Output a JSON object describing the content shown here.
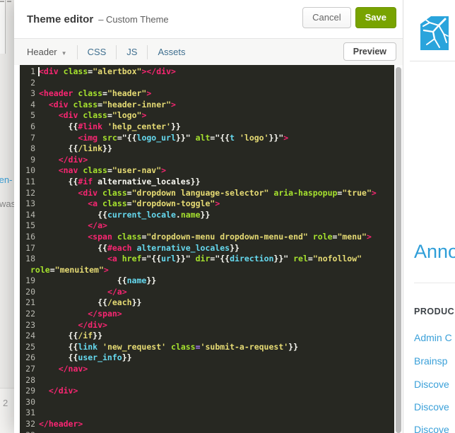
{
  "left_strip": {
    "link_fragment": "/en-",
    "text_fragment": "was",
    "page_number": "2"
  },
  "modal": {
    "title": "Theme editor",
    "subtitle": "– Custom Theme",
    "cancel_label": "Cancel",
    "save_label": "Save",
    "save_color": "#78a300",
    "tabs": [
      {
        "label": "Header"
      },
      {
        "label": "CSS"
      },
      {
        "label": "JS"
      },
      {
        "label": "Assets"
      }
    ],
    "preview_label": "Preview"
  },
  "editor": {
    "colors": {
      "bg": "#272822",
      "gutter": "#b9b9b1",
      "p": "#f92672",
      "g": "#a6e22e",
      "y": "#e6db74",
      "c": "#66d9ef",
      "w": "#f8f8f2",
      "v": "#ae81ff"
    },
    "rows": [
      {
        "n": "1",
        "t": [
          [
            "p",
            "<div"
          ],
          [
            "w",
            " "
          ],
          [
            "g",
            "class"
          ],
          [
            "w",
            "="
          ],
          [
            "y",
            "\"alertbox\""
          ],
          [
            "p",
            "></div>"
          ]
        ]
      },
      {
        "n": "2",
        "t": []
      },
      {
        "n": "3",
        "t": [
          [
            "p",
            "<header"
          ],
          [
            "w",
            " "
          ],
          [
            "g",
            "class"
          ],
          [
            "w",
            "="
          ],
          [
            "y",
            "\"header\""
          ],
          [
            "p",
            ">"
          ]
        ]
      },
      {
        "n": "4",
        "t": [
          [
            "w",
            "  "
          ],
          [
            "p",
            "<div"
          ],
          [
            "w",
            " "
          ],
          [
            "g",
            "class"
          ],
          [
            "w",
            "="
          ],
          [
            "y",
            "\"header-inner\""
          ],
          [
            "p",
            ">"
          ]
        ]
      },
      {
        "n": "5",
        "t": [
          [
            "w",
            "    "
          ],
          [
            "p",
            "<div"
          ],
          [
            "w",
            " "
          ],
          [
            "g",
            "class"
          ],
          [
            "w",
            "="
          ],
          [
            "y",
            "\"logo\""
          ],
          [
            "p",
            ">"
          ]
        ]
      },
      {
        "n": "6",
        "t": [
          [
            "w",
            "      {{"
          ],
          [
            "p",
            "#link"
          ],
          [
            "w",
            " "
          ],
          [
            "y",
            "'help_center'"
          ],
          [
            "w",
            "}}"
          ]
        ]
      },
      {
        "n": "7",
        "t": [
          [
            "w",
            "        "
          ],
          [
            "p",
            "<img"
          ],
          [
            "w",
            " "
          ],
          [
            "g",
            "src"
          ],
          [
            "w",
            "=\"{{"
          ],
          [
            "c",
            "logo_url"
          ],
          [
            "w",
            "}}\" "
          ],
          [
            "g",
            "alt"
          ],
          [
            "w",
            "=\"{{"
          ],
          [
            "c",
            "t"
          ],
          [
            "w",
            " "
          ],
          [
            "y",
            "'logo'"
          ],
          [
            "w",
            "}}\""
          ],
          [
            "p",
            ">"
          ]
        ]
      },
      {
        "n": "8",
        "t": [
          [
            "w",
            "      {{"
          ],
          [
            "y",
            "/link"
          ],
          [
            "w",
            "}}"
          ]
        ]
      },
      {
        "n": "9",
        "t": [
          [
            "w",
            "    "
          ],
          [
            "p",
            "</div>"
          ]
        ]
      },
      {
        "n": "10",
        "t": [
          [
            "w",
            "    "
          ],
          [
            "p",
            "<nav"
          ],
          [
            "w",
            " "
          ],
          [
            "g",
            "class"
          ],
          [
            "w",
            "="
          ],
          [
            "y",
            "\"user-nav\""
          ],
          [
            "p",
            ">"
          ]
        ]
      },
      {
        "n": "11",
        "t": [
          [
            "w",
            "      {{"
          ],
          [
            "p",
            "#if"
          ],
          [
            "w",
            " alternative_locales}}"
          ]
        ]
      },
      {
        "n": "12",
        "t": [
          [
            "w",
            "        "
          ],
          [
            "p",
            "<div"
          ],
          [
            "w",
            " "
          ],
          [
            "g",
            "class"
          ],
          [
            "w",
            "="
          ],
          [
            "y",
            "\"dropdown language-selector\""
          ],
          [
            "w",
            " "
          ],
          [
            "g",
            "aria-haspopup"
          ],
          [
            "w",
            "="
          ],
          [
            "y",
            "\"true\""
          ],
          [
            "p",
            ">"
          ]
        ]
      },
      {
        "n": "13",
        "t": [
          [
            "w",
            "          "
          ],
          [
            "p",
            "<a"
          ],
          [
            "w",
            " "
          ],
          [
            "g",
            "class"
          ],
          [
            "w",
            "="
          ],
          [
            "y",
            "\"dropdown-toggle\""
          ],
          [
            "p",
            ">"
          ]
        ]
      },
      {
        "n": "14",
        "t": [
          [
            "w",
            "            {{"
          ],
          [
            "c",
            "current_locale"
          ],
          [
            "w",
            "."
          ],
          [
            "g",
            "name"
          ],
          [
            "w",
            "}}"
          ]
        ]
      },
      {
        "n": "15",
        "t": [
          [
            "w",
            "          "
          ],
          [
            "p",
            "</a>"
          ]
        ]
      },
      {
        "n": "16",
        "t": [
          [
            "w",
            "          "
          ],
          [
            "p",
            "<span"
          ],
          [
            "w",
            " "
          ],
          [
            "g",
            "class"
          ],
          [
            "w",
            "="
          ],
          [
            "y",
            "\"dropdown-menu dropdown-menu-end\""
          ],
          [
            "w",
            " "
          ],
          [
            "g",
            "role"
          ],
          [
            "w",
            "="
          ],
          [
            "y",
            "\"menu\""
          ],
          [
            "p",
            ">"
          ]
        ]
      },
      {
        "n": "17",
        "t": [
          [
            "w",
            "            {{"
          ],
          [
            "p",
            "#each"
          ],
          [
            "w",
            " "
          ],
          [
            "c",
            "alternative_locales"
          ],
          [
            "w",
            "}}"
          ]
        ]
      },
      {
        "n": "18",
        "t": [
          [
            "w",
            "              "
          ],
          [
            "p",
            "<a"
          ],
          [
            "w",
            " "
          ],
          [
            "g",
            "href"
          ],
          [
            "w",
            "=\"{{"
          ],
          [
            "c",
            "url"
          ],
          [
            "w",
            "}}\" "
          ],
          [
            "g",
            "dir"
          ],
          [
            "w",
            "=\"{{"
          ],
          [
            "c",
            "direction"
          ],
          [
            "w",
            "}}\" "
          ],
          [
            "g",
            "rel"
          ],
          [
            "w",
            "="
          ],
          [
            "y",
            "\"nofollow\""
          ]
        ]
      },
      {
        "n": "",
        "wrap": true,
        "t": [
          [
            "g",
            "role"
          ],
          [
            "w",
            "="
          ],
          [
            "y",
            "\"menuitem\""
          ],
          [
            "p",
            ">"
          ]
        ]
      },
      {
        "n": "19",
        "t": [
          [
            "w",
            "                {{"
          ],
          [
            "c",
            "name"
          ],
          [
            "w",
            "}}"
          ]
        ]
      },
      {
        "n": "20",
        "t": [
          [
            "w",
            "              "
          ],
          [
            "p",
            "</a>"
          ]
        ]
      },
      {
        "n": "21",
        "t": [
          [
            "w",
            "            {{"
          ],
          [
            "y",
            "/each"
          ],
          [
            "w",
            "}}"
          ]
        ]
      },
      {
        "n": "22",
        "t": [
          [
            "w",
            "          "
          ],
          [
            "p",
            "</span>"
          ]
        ]
      },
      {
        "n": "23",
        "t": [
          [
            "w",
            "        "
          ],
          [
            "p",
            "</div>"
          ]
        ]
      },
      {
        "n": "24",
        "t": [
          [
            "w",
            "      {{"
          ],
          [
            "y",
            "/if"
          ],
          [
            "w",
            "}}"
          ]
        ]
      },
      {
        "n": "25",
        "t": [
          [
            "w",
            "      {{"
          ],
          [
            "c",
            "link"
          ],
          [
            "w",
            " "
          ],
          [
            "y",
            "'new_request'"
          ],
          [
            "w",
            " "
          ],
          [
            "g",
            "class"
          ],
          [
            "v",
            "="
          ],
          [
            "y",
            "'submit-a-request'"
          ],
          [
            "w",
            "}}"
          ]
        ]
      },
      {
        "n": "26",
        "t": [
          [
            "w",
            "      {{"
          ],
          [
            "c",
            "user_info"
          ],
          [
            "w",
            "}}"
          ]
        ]
      },
      {
        "n": "27",
        "t": [
          [
            "w",
            "    "
          ],
          [
            "p",
            "</nav>"
          ]
        ]
      },
      {
        "n": "28",
        "t": []
      },
      {
        "n": "29",
        "t": [
          [
            "w",
            "  "
          ],
          [
            "p",
            "</div>"
          ]
        ]
      },
      {
        "n": "30",
        "t": []
      },
      {
        "n": "31",
        "t": []
      },
      {
        "n": "32",
        "t": [
          [
            "p",
            "</header>"
          ]
        ]
      },
      {
        "n": "33",
        "t": []
      }
    ]
  },
  "page": {
    "logo_color": "#2aa4dc",
    "heading_fragment": "Anno",
    "section_label_fragment": "PRODUC",
    "links": [
      "Admin C",
      "Brainsp",
      "Discove",
      "Discove",
      "Discove"
    ]
  }
}
